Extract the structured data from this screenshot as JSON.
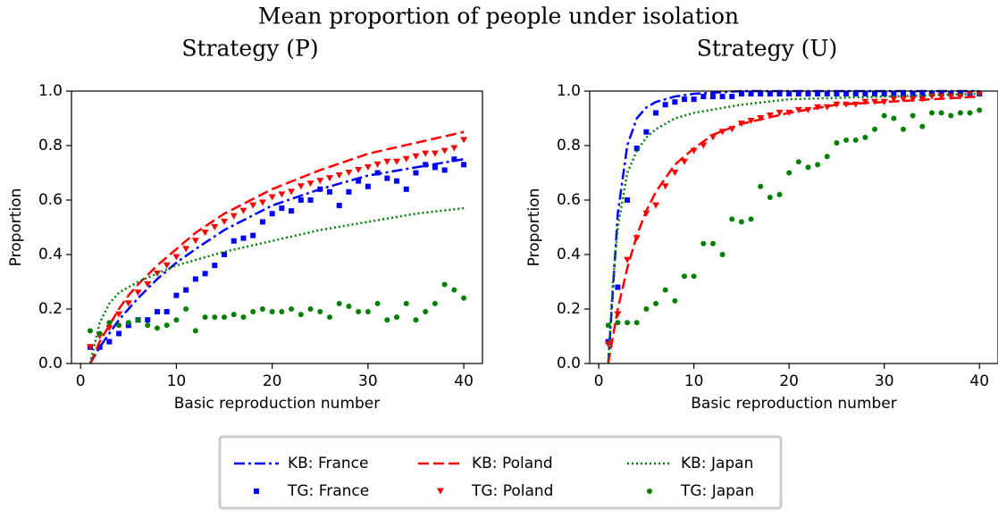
{
  "title": "Mean proportion of people under isolation",
  "chart_data": [
    {
      "type": "line",
      "title": "Strategy (P)",
      "xlabel": "Basic reproduction number",
      "ylabel": "Proportion",
      "xlim": [
        -0.95,
        41.95
      ],
      "ylim": [
        0,
        1
      ],
      "xticks": [
        0,
        10,
        20,
        30,
        40
      ],
      "yticks": [
        {
          "value": 0,
          "label": "0.0"
        },
        0.2,
        0.4,
        0.6,
        0.8,
        {
          "value": 1,
          "label": "1.0"
        }
      ],
      "series": [
        {
          "name": "KB: France",
          "color": "#0000ff",
          "style": "dashdot",
          "x": [
            1,
            2,
            3,
            4,
            5,
            6,
            8,
            10,
            12,
            15,
            20,
            25,
            30,
            35,
            40
          ],
          "values": [
            0,
            0.06,
            0.11,
            0.16,
            0.2,
            0.24,
            0.31,
            0.37,
            0.42,
            0.49,
            0.58,
            0.64,
            0.69,
            0.72,
            0.75
          ]
        },
        {
          "name": "TG: France",
          "color": "#0000ff",
          "marker": "square",
          "x": [
            1,
            2,
            3,
            4,
            5,
            6,
            7,
            8,
            9,
            10,
            11,
            12,
            13,
            14,
            15,
            16,
            17,
            18,
            19,
            20,
            21,
            22,
            23,
            24,
            25,
            26,
            27,
            28,
            29,
            30,
            31,
            32,
            33,
            34,
            35,
            36,
            37,
            38,
            39,
            40
          ],
          "values": [
            0.06,
            0.06,
            0.08,
            0.11,
            0.14,
            0.16,
            0.16,
            0.19,
            0.19,
            0.25,
            0.27,
            0.31,
            0.33,
            0.36,
            0.4,
            0.45,
            0.46,
            0.47,
            0.52,
            0.55,
            0.57,
            0.56,
            0.6,
            0.6,
            0.64,
            0.63,
            0.58,
            0.63,
            0.67,
            0.65,
            0.7,
            0.68,
            0.67,
            0.64,
            0.7,
            0.73,
            0.72,
            0.71,
            0.75,
            0.73
          ]
        },
        {
          "name": "KB: Poland",
          "color": "#ff0000",
          "style": "dashed",
          "x": [
            1,
            2,
            3,
            4,
            5,
            6,
            8,
            10,
            12,
            15,
            20,
            25,
            30,
            35,
            40
          ],
          "values": [
            0,
            0.08,
            0.14,
            0.2,
            0.25,
            0.29,
            0.36,
            0.42,
            0.48,
            0.55,
            0.64,
            0.71,
            0.77,
            0.81,
            0.85
          ]
        },
        {
          "name": "TG: Poland",
          "color": "#ff0000",
          "marker": "triangle",
          "x": [
            1,
            2,
            3,
            4,
            5,
            6,
            7,
            8,
            9,
            10,
            11,
            12,
            13,
            14,
            15,
            16,
            17,
            18,
            19,
            20,
            21,
            22,
            23,
            24,
            25,
            26,
            27,
            28,
            29,
            30,
            31,
            32,
            33,
            34,
            35,
            36,
            37,
            38,
            39,
            40
          ],
          "values": [
            0.06,
            0.1,
            0.13,
            0.18,
            0.22,
            0.26,
            0.29,
            0.33,
            0.36,
            0.39,
            0.42,
            0.45,
            0.48,
            0.5,
            0.52,
            0.54,
            0.56,
            0.58,
            0.59,
            0.61,
            0.62,
            0.63,
            0.65,
            0.66,
            0.67,
            0.68,
            0.69,
            0.7,
            0.71,
            0.72,
            0.73,
            0.74,
            0.74,
            0.75,
            0.76,
            0.77,
            0.77,
            0.78,
            0.79,
            0.82
          ]
        },
        {
          "name": "KB: Japan",
          "color": "#008000",
          "style": "dotted",
          "x": [
            1,
            2,
            3,
            4,
            5,
            6,
            8,
            10,
            12,
            15,
            20,
            25,
            30,
            35,
            40
          ],
          "values": [
            0,
            0.15,
            0.22,
            0.26,
            0.28,
            0.3,
            0.33,
            0.36,
            0.38,
            0.41,
            0.45,
            0.49,
            0.52,
            0.55,
            0.57
          ]
        },
        {
          "name": "TG: Japan",
          "color": "#008000",
          "marker": "circle",
          "x": [
            1,
            2,
            3,
            4,
            5,
            6,
            7,
            8,
            9,
            10,
            11,
            12,
            13,
            14,
            15,
            16,
            17,
            18,
            19,
            20,
            21,
            22,
            23,
            24,
            25,
            26,
            27,
            28,
            29,
            30,
            31,
            32,
            33,
            34,
            35,
            36,
            37,
            38,
            39,
            40
          ],
          "values": [
            0.12,
            0.11,
            0.15,
            0.14,
            0.15,
            0.16,
            0.14,
            0.13,
            0.14,
            0.16,
            0.2,
            0.12,
            0.17,
            0.17,
            0.17,
            0.18,
            0.17,
            0.19,
            0.2,
            0.19,
            0.19,
            0.2,
            0.18,
            0.2,
            0.19,
            0.17,
            0.22,
            0.21,
            0.19,
            0.19,
            0.22,
            0.16,
            0.17,
            0.22,
            0.16,
            0.19,
            0.22,
            0.29,
            0.27,
            0.24
          ]
        }
      ]
    },
    {
      "type": "line",
      "title": "Strategy (U)",
      "xlabel": "Basic reproduction number",
      "ylabel": "Proportion",
      "xlim": [
        -0.95,
        41.95
      ],
      "ylim": [
        0,
        1
      ],
      "xticks": [
        0,
        10,
        20,
        30,
        40
      ],
      "yticks": [
        {
          "value": 0,
          "label": "0.0"
        },
        0.2,
        0.4,
        0.6,
        0.8,
        {
          "value": 1,
          "label": "1.0"
        }
      ],
      "series": [
        {
          "color": "#0000ff",
          "style": "dashdot",
          "x": [
            1,
            2,
            3,
            4,
            5,
            6,
            8,
            10,
            15,
            20,
            30,
            40
          ],
          "values": [
            0,
            0.55,
            0.8,
            0.9,
            0.94,
            0.96,
            0.98,
            0.99,
            1,
            1,
            1,
            1
          ]
        },
        {
          "color": "#0000ff",
          "marker": "square",
          "x": [
            1,
            2,
            3,
            4,
            5,
            6,
            7,
            8,
            9,
            10,
            11,
            12,
            13,
            14,
            15,
            16,
            17,
            18,
            19,
            20,
            21,
            22,
            23,
            24,
            25,
            26,
            27,
            28,
            29,
            30,
            31,
            32,
            33,
            34,
            35,
            36,
            37,
            38,
            39,
            40
          ],
          "values": [
            0.08,
            0.28,
            0.6,
            0.79,
            0.85,
            0.92,
            0.95,
            0.96,
            0.97,
            0.97,
            0.98,
            0.98,
            0.98,
            0.98,
            0.99,
            0.99,
            0.99,
            0.99,
            0.99,
            0.99,
            0.99,
            0.99,
            0.99,
            0.99,
            0.99,
            0.99,
            0.99,
            0.99,
            0.99,
            0.99,
            0.99,
            0.99,
            0.99,
            0.99,
            0.99,
            0.99,
            0.99,
            0.99,
            0.99,
            0.99
          ]
        },
        {
          "color": "#ff0000",
          "style": "dashed",
          "x": [
            1,
            2,
            3,
            4,
            5,
            6,
            8,
            10,
            12,
            15,
            20,
            25,
            30,
            40
          ],
          "values": [
            0,
            0.2,
            0.35,
            0.47,
            0.56,
            0.63,
            0.73,
            0.79,
            0.84,
            0.88,
            0.92,
            0.95,
            0.96,
            0.98
          ]
        },
        {
          "color": "#ff0000",
          "marker": "triangle",
          "x": [
            1,
            2,
            3,
            4,
            5,
            6,
            7,
            8,
            9,
            10,
            11,
            12,
            13,
            14,
            15,
            16,
            17,
            18,
            19,
            20,
            21,
            22,
            23,
            24,
            25,
            26,
            27,
            28,
            29,
            30,
            31,
            32,
            33,
            34,
            35,
            36,
            37,
            38,
            39,
            40
          ],
          "values": [
            0.07,
            0.18,
            0.38,
            0.46,
            0.55,
            0.58,
            0.65,
            0.7,
            0.74,
            0.78,
            0.8,
            0.83,
            0.85,
            0.86,
            0.88,
            0.89,
            0.9,
            0.91,
            0.92,
            0.92,
            0.93,
            0.93,
            0.94,
            0.94,
            0.95,
            0.95,
            0.95,
            0.96,
            0.96,
            0.96,
            0.97,
            0.97,
            0.97,
            0.97,
            0.98,
            0.98,
            0.98,
            0.98,
            0.99,
            0.99
          ]
        },
        {
          "color": "#008000",
          "style": "dotted",
          "x": [
            1,
            1.5,
            2,
            3,
            4,
            5,
            6,
            8,
            10,
            15,
            20,
            30,
            40
          ],
          "values": [
            0,
            0.3,
            0.5,
            0.7,
            0.78,
            0.83,
            0.86,
            0.9,
            0.92,
            0.95,
            0.97,
            0.98,
            0.99
          ]
        },
        {
          "color": "#008000",
          "marker": "circle",
          "x": [
            1,
            2,
            3,
            4,
            5,
            6,
            7,
            8,
            9,
            10,
            11,
            12,
            13,
            14,
            15,
            16,
            17,
            18,
            19,
            20,
            21,
            22,
            23,
            24,
            25,
            26,
            27,
            28,
            29,
            30,
            31,
            32,
            33,
            34,
            35,
            36,
            37,
            38,
            39,
            40
          ],
          "values": [
            0.14,
            0.15,
            0.15,
            0.15,
            0.2,
            0.22,
            0.27,
            0.23,
            0.32,
            0.32,
            0.44,
            0.44,
            0.4,
            0.53,
            0.52,
            0.53,
            0.65,
            0.61,
            0.62,
            0.7,
            0.74,
            0.72,
            0.73,
            0.76,
            0.81,
            0.82,
            0.82,
            0.83,
            0.86,
            0.91,
            0.9,
            0.86,
            0.91,
            0.87,
            0.92,
            0.92,
            0.91,
            0.92,
            0.92,
            0.93
          ]
        }
      ]
    }
  ]
}
